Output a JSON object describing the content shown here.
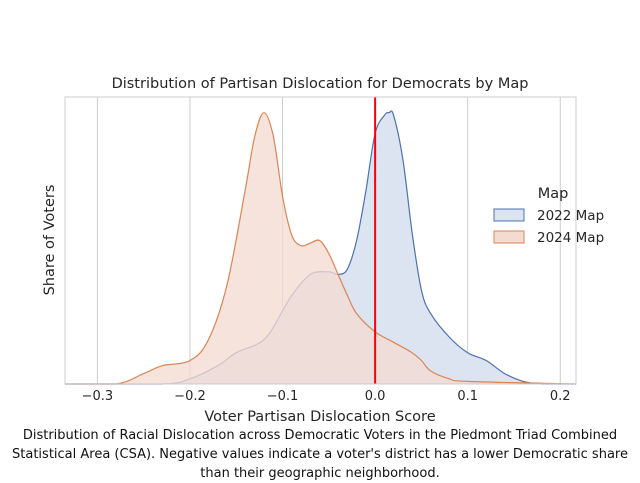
{
  "chart_data": {
    "type": "area",
    "title": "Distribution of Partisan Dislocation for Democrats by Map",
    "xlabel": "Voter Partisan Dislocation Score",
    "ylabel": "Share of Voters",
    "xlim": [
      -0.335,
      0.217
    ],
    "ylim": [
      0,
      1.1
    ],
    "xticks": [
      -0.3,
      -0.2,
      -0.1,
      0.0,
      0.1,
      0.2
    ],
    "xtick_labels": [
      "−0.3",
      "−0.2",
      "−0.1",
      "0.0",
      "0.1",
      "0.2"
    ],
    "grid": "vertical",
    "legend": {
      "title": "Map",
      "placement": "right"
    },
    "reference_line": {
      "x": 0.0,
      "color": "#ff0000"
    },
    "series": [
      {
        "name": "2022 Map",
        "color": "#4c72b0",
        "fill": "#dce3f1",
        "x": [
          -0.335,
          -0.23,
          -0.2,
          -0.17,
          -0.15,
          -0.12,
          -0.1,
          -0.09,
          -0.07,
          -0.05,
          -0.04,
          -0.03,
          -0.02,
          -0.01,
          0.0,
          0.01,
          0.015,
          0.02,
          0.03,
          0.04,
          0.05,
          0.06,
          0.08,
          0.1,
          0.12,
          0.14,
          0.16,
          0.18,
          0.217
        ],
        "y": [
          0,
          0,
          0.02,
          0.07,
          0.12,
          0.17,
          0.28,
          0.34,
          0.42,
          0.43,
          0.42,
          0.44,
          0.55,
          0.74,
          0.96,
          1.03,
          1.04,
          1.03,
          0.86,
          0.58,
          0.36,
          0.27,
          0.18,
          0.12,
          0.09,
          0.04,
          0.01,
          0.0,
          0
        ]
      },
      {
        "name": "2024 Map",
        "color": "#dd8452",
        "fill": "#f4dbd2",
        "x": [
          -0.335,
          -0.28,
          -0.25,
          -0.23,
          -0.2,
          -0.18,
          -0.16,
          -0.14,
          -0.13,
          -0.12,
          -0.11,
          -0.1,
          -0.09,
          -0.08,
          -0.07,
          -0.06,
          -0.05,
          -0.04,
          -0.03,
          -0.02,
          0.0,
          0.02,
          0.04,
          0.05,
          0.06,
          0.08,
          0.1,
          0.217
        ],
        "y": [
          0,
          0,
          0.04,
          0.07,
          0.09,
          0.17,
          0.38,
          0.75,
          0.95,
          1.04,
          0.95,
          0.72,
          0.57,
          0.53,
          0.54,
          0.55,
          0.5,
          0.42,
          0.34,
          0.27,
          0.2,
          0.16,
          0.12,
          0.09,
          0.05,
          0.02,
          0.01,
          0
        ]
      }
    ]
  },
  "caption": "Distribution of Racial Dislocation across Democratic Voters in the Piedmont Triad Combined Statistical Area (CSA). Negative values indicate a voter's district has a lower Democratic share than their geographic neighborhood."
}
